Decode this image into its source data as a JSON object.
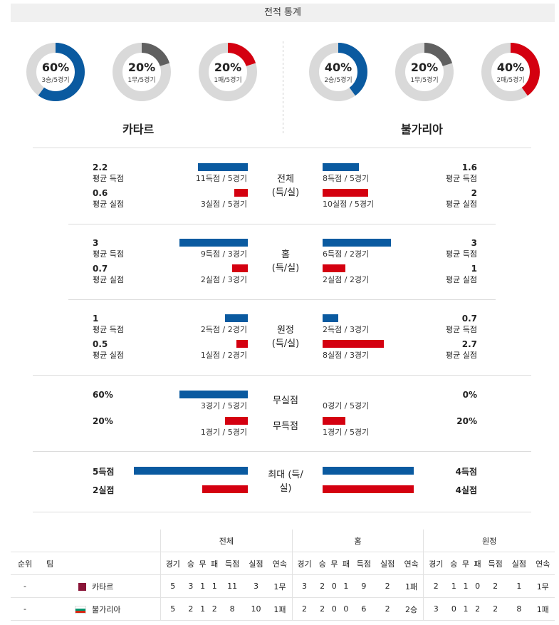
{
  "title": "전적 통계",
  "teams": {
    "home": "카타르",
    "away": "불가리아"
  },
  "colors": {
    "blue": "#0a5aa0",
    "red": "#d40010",
    "gray": "#606060",
    "track": "#d9d9d9"
  },
  "donuts": {
    "home": [
      {
        "pct": "60%",
        "sub": "3승/5경기",
        "value": 0.6,
        "color": "#0a5aa0"
      },
      {
        "pct": "20%",
        "sub": "1무/5경기",
        "value": 0.2,
        "color": "#606060"
      },
      {
        "pct": "20%",
        "sub": "1패/5경기",
        "value": 0.2,
        "color": "#d40010"
      }
    ],
    "away": [
      {
        "pct": "40%",
        "sub": "2승/5경기",
        "value": 0.4,
        "color": "#0a5aa0"
      },
      {
        "pct": "20%",
        "sub": "1무/5경기",
        "value": 0.2,
        "color": "#606060"
      },
      {
        "pct": "40%",
        "sub": "2패/5경기",
        "value": 0.4,
        "color": "#d40010"
      }
    ]
  },
  "sections": [
    {
      "center": "전체\n(득/실)",
      "home": {
        "g_val": "2.2",
        "g_lbl": "평균 득점",
        "g_detail": "11득점 / 5경기",
        "g_frac": 0.44,
        "c_val": "0.6",
        "c_lbl": "평균 실점",
        "c_detail": "3실점 / 5경기",
        "c_frac": 0.12
      },
      "away": {
        "g_val": "1.6",
        "g_lbl": "평균 득점",
        "g_detail": "8득점 / 5경기",
        "g_frac": 0.32,
        "c_val": "2",
        "c_lbl": "평균 실점",
        "c_detail": "10실점 / 5경기",
        "c_frac": 0.4
      }
    },
    {
      "center": "홈\n(득/실)",
      "home": {
        "g_val": "3",
        "g_lbl": "평균 득점",
        "g_detail": "9득점 / 3경기",
        "g_frac": 0.6,
        "c_val": "0.7",
        "c_lbl": "평균 실점",
        "c_detail": "2실점 / 3경기",
        "c_frac": 0.14
      },
      "away": {
        "g_val": "3",
        "g_lbl": "평균 득점",
        "g_detail": "6득점 / 2경기",
        "g_frac": 0.6,
        "c_val": "1",
        "c_lbl": "평균 실점",
        "c_detail": "2실점 / 2경기",
        "c_frac": 0.2
      }
    },
    {
      "center": "원정\n(득/실)",
      "home": {
        "g_val": "1",
        "g_lbl": "평균 득점",
        "g_detail": "2득점 / 2경기",
        "g_frac": 0.2,
        "c_val": "0.5",
        "c_lbl": "평균 실점",
        "c_detail": "1실점 / 2경기",
        "c_frac": 0.1
      },
      "away": {
        "g_val": "0.7",
        "g_lbl": "평균 득점",
        "g_detail": "2득점 / 3경기",
        "g_frac": 0.14,
        "c_val": "2.7",
        "c_lbl": "평균 실점",
        "c_detail": "8실점 / 3경기",
        "c_frac": 0.54
      }
    }
  ],
  "clean_sheet": {
    "label1": "무실점",
    "label2": "무득점",
    "home": {
      "cs_val": "60%",
      "cs_detail": "3경기 / 5경기",
      "cs_frac": 0.6,
      "fs_val": "20%",
      "fs_detail": "1경기 / 5경기",
      "fs_frac": 0.2
    },
    "away": {
      "cs_val": "0%",
      "cs_detail": "0경기 / 5경기",
      "cs_frac": 0.0,
      "fs_val": "20%",
      "fs_detail": "1경기 / 5경기",
      "fs_frac": 0.2
    }
  },
  "max": {
    "center": "최대\n(득/실)",
    "home": {
      "g_val": "5득점",
      "g_frac": 1.0,
      "c_val": "2실점",
      "c_frac": 0.4
    },
    "away": {
      "g_val": "4득점",
      "g_frac": 0.8,
      "c_val": "4실점",
      "c_frac": 0.8
    }
  },
  "table": {
    "group_headers": [
      "전체",
      "홈",
      "원정"
    ],
    "rank_label": "순위",
    "team_label": "팀",
    "cols": [
      "경기",
      "승",
      "무",
      "패",
      "득점",
      "실점",
      "연속"
    ],
    "rows": [
      {
        "rank": "-",
        "team": "카타르",
        "flag": "qatar",
        "total": [
          "5",
          "3",
          "1",
          "1",
          "11",
          "3",
          "1무"
        ],
        "home": [
          "3",
          "2",
          "0",
          "1",
          "9",
          "2",
          "1패"
        ],
        "away": [
          "2",
          "1",
          "1",
          "0",
          "2",
          "1",
          "1무"
        ]
      },
      {
        "rank": "-",
        "team": "불가리아",
        "flag": "bulgaria",
        "total": [
          "5",
          "2",
          "1",
          "2",
          "8",
          "10",
          "1패"
        ],
        "home": [
          "2",
          "2",
          "0",
          "0",
          "6",
          "2",
          "2승"
        ],
        "away": [
          "3",
          "0",
          "1",
          "2",
          "2",
          "8",
          "1패"
        ]
      }
    ]
  }
}
